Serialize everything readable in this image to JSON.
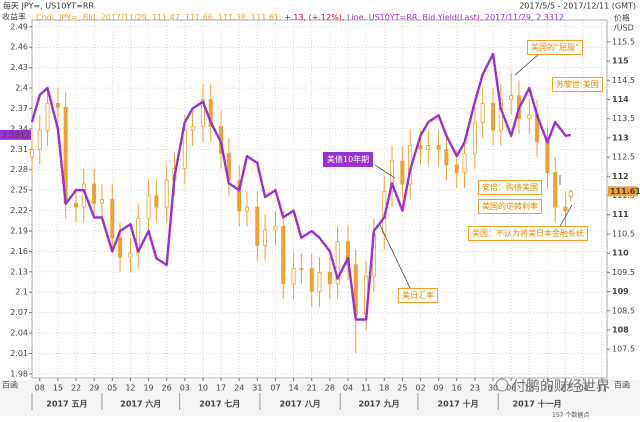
{
  "chart_data": {
    "type": "candlestick",
    "title": "每天 JPY=, US10YT=RR",
    "subtitle": "2017/5/5 - 2017/12/11 (GMT)",
    "legend_text": [
      "Cndl, JPY=, Bid, 2017/11/29, 111.47, 111.66, 111.38, 111.61, ",
      "+.13, (+.12%), ",
      "Line, US10YT=RR, Bid Yield(Last), 2017/11/29, 2.3312"
    ],
    "y_label": "收益率",
    "y2_label": [
      "价格",
      "/USD"
    ],
    "corner_labels": [
      "百函",
      "百函"
    ],
    "annotations": [
      "美国的“屈服”",
      "苏黎世:美国",
      "美债10年期",
      "安倍：购债美国",
      "美国的逆转利率",
      "美国：不认为将美日本金融系统",
      "美日汇率"
    ],
    "watermark": "付鹏的财经世界",
    "footnote": "157 个数据点",
    "grid": true,
    "x": [
      "2017-05-05",
      "2017-05-08",
      "2017-05-11",
      "2017-05-15",
      "2017-05-18",
      "2017-05-22",
      "2017-05-25",
      "2017-05-29",
      "2017-06-01",
      "2017-06-05",
      "2017-06-08",
      "2017-06-12",
      "2017-06-15",
      "2017-06-19",
      "2017-06-22",
      "2017-06-26",
      "2017-06-29",
      "2017-07-03",
      "2017-07-06",
      "2017-07-10",
      "2017-07-13",
      "2017-07-17",
      "2017-07-20",
      "2017-07-24",
      "2017-07-27",
      "2017-07-31",
      "2017-08-03",
      "2017-08-07",
      "2017-08-10",
      "2017-08-14",
      "2017-08-17",
      "2017-08-21",
      "2017-08-24",
      "2017-08-28",
      "2017-08-31",
      "2017-09-04",
      "2017-09-07",
      "2017-09-11",
      "2017-09-14",
      "2017-09-18",
      "2017-09-21",
      "2017-09-25",
      "2017-09-28",
      "2017-10-02",
      "2017-10-05",
      "2017-10-09",
      "2017-10-12",
      "2017-10-16",
      "2017-10-19",
      "2017-10-23",
      "2017-10-26",
      "2017-10-30",
      "2017-11-02",
      "2017-11-06",
      "2017-11-09",
      "2017-11-13",
      "2017-11-16",
      "2017-11-20",
      "2017-11-23",
      "2017-11-27",
      "2017-11-29"
    ],
    "xlim": [
      "2017-05-05",
      "2017-12-13"
    ],
    "xticks": [
      {
        "value": "2017-05-08",
        "label": "08"
      },
      {
        "value": "2017-05-15",
        "label": "15"
      },
      {
        "value": "2017-05-22",
        "label": "22"
      },
      {
        "value": "2017-05-29",
        "label": "29"
      },
      {
        "value": "2017-06-05",
        "label": "05"
      },
      {
        "value": "2017-06-12",
        "label": "12"
      },
      {
        "value": "2017-06-19",
        "label": "19"
      },
      {
        "value": "2017-06-26",
        "label": "26"
      },
      {
        "value": "2017-07-03",
        "label": "03"
      },
      {
        "value": "2017-07-10",
        "label": "10"
      },
      {
        "value": "2017-07-17",
        "label": "17"
      },
      {
        "value": "2017-07-24",
        "label": "24"
      },
      {
        "value": "2017-07-31",
        "label": "31"
      },
      {
        "value": "2017-08-07",
        "label": "07"
      },
      {
        "value": "2017-08-14",
        "label": "14"
      },
      {
        "value": "2017-08-21",
        "label": "21"
      },
      {
        "value": "2017-08-28",
        "label": "28"
      },
      {
        "value": "2017-09-04",
        "label": "04"
      },
      {
        "value": "2017-09-11",
        "label": "11"
      },
      {
        "value": "2017-09-18",
        "label": "18"
      },
      {
        "value": "2017-09-25",
        "label": "25"
      },
      {
        "value": "2017-10-02",
        "label": "02"
      },
      {
        "value": "2017-10-09",
        "label": "09"
      },
      {
        "value": "2017-10-16",
        "label": "16"
      },
      {
        "value": "2017-10-23",
        "label": "23"
      },
      {
        "value": "2017-10-30",
        "label": "30"
      },
      {
        "value": "2017-11-06",
        "label": "06"
      },
      {
        "value": "2017-11-13",
        "label": "13"
      },
      {
        "value": "2017-11-20",
        "label": "20"
      },
      {
        "value": "2017-11-27",
        "label": "27"
      },
      {
        "value": "2017-12-04",
        "label": "04"
      },
      {
        "value": "2017-12-11",
        "label": "11"
      }
    ],
    "x_groups": [
      {
        "label": "2017 五月",
        "start": "2017-05-05",
        "end": "2017-06-01"
      },
      {
        "label": "2017 六月",
        "start": "2017-06-01",
        "end": "2017-07-01"
      },
      {
        "label": "2017 七月",
        "start": "2017-07-01",
        "end": "2017-08-01"
      },
      {
        "label": "2017 八月",
        "start": "2017-08-01",
        "end": "2017-09-01"
      },
      {
        "label": "2017 九月",
        "start": "2017-09-01",
        "end": "2017-10-01"
      },
      {
        "label": "2017 十月",
        "start": "2017-10-01",
        "end": "2017-11-01"
      },
      {
        "label": "2017 十一月",
        "start": "2017-11-01",
        "end": "2017-12-01"
      }
    ],
    "ylim": [
      1.974,
      2.5
    ],
    "yticks": [
      2.49,
      2.46,
      2.43,
      2.4,
      2.37,
      2.34,
      2.31,
      2.28,
      2.25,
      2.22,
      2.19,
      2.16,
      2.13,
      2.1,
      2.07,
      2.04,
      2.01,
      1.98
    ],
    "y2lim": [
      106.75,
      116.07
    ],
    "y2ticks": [
      115.5,
      115,
      114.5,
      114,
      113.5,
      113,
      112.5,
      112,
      111.5,
      111,
      110.5,
      110,
      109.5,
      109,
      108.5,
      108,
      107.5
    ],
    "series": [
      {
        "type": "candlestick",
        "axis": "y2",
        "color": "#f0a030",
        "open": [
          112.5,
          112.7,
          113.2,
          113.9,
          113.8,
          111.3,
          111.2,
          111.8,
          111.3,
          111.4,
          110.4,
          109.9,
          110.0,
          110.9,
          111.5,
          111.2,
          111.9,
          112.2,
          113.2,
          113.3,
          114.0,
          113.3,
          112.6,
          111.9,
          111.1,
          111.2,
          110.2,
          110.6,
          110.7,
          109.2,
          109.6,
          109.6,
          109.0,
          109.5,
          109.2,
          110.3,
          109.7,
          108.4,
          109.4,
          110.5,
          111.6,
          112.4,
          111.8,
          112.8,
          112.7,
          112.8,
          112.7,
          112.3,
          112.1,
          112.6,
          113.4,
          113.9,
          113.2,
          114.0,
          114.1,
          113.5,
          113.6,
          112.9,
          112.1,
          111.2,
          111.47
        ],
        "high": [
          113.1,
          113.6,
          114.3,
          114.3,
          114.2,
          111.7,
          112.2,
          112.2,
          111.8,
          111.8,
          110.8,
          110.4,
          111.3,
          111.9,
          111.9,
          112.3,
          112.6,
          113.6,
          113.7,
          114.4,
          114.4,
          113.7,
          113.0,
          112.3,
          111.6,
          111.6,
          111.0,
          111.1,
          111.1,
          110.0,
          110.0,
          110.0,
          109.9,
          109.9,
          110.7,
          110.7,
          110.1,
          109.8,
          110.9,
          112.0,
          112.8,
          112.8,
          113.2,
          113.2,
          113.2,
          113.2,
          113.1,
          112.7,
          113.0,
          113.8,
          114.3,
          114.3,
          114.4,
          114.7,
          114.5,
          114.0,
          114.0,
          113.3,
          112.5,
          111.6,
          111.66
        ],
        "low": [
          112.1,
          112.3,
          112.8,
          113.4,
          110.9,
          110.8,
          110.8,
          110.9,
          110.9,
          110.0,
          109.5,
          109.5,
          109.6,
          110.5,
          110.8,
          110.8,
          111.5,
          111.8,
          112.8,
          112.9,
          112.9,
          112.2,
          111.5,
          110.7,
          110.7,
          109.8,
          109.8,
          110.2,
          108.8,
          108.8,
          109.2,
          108.6,
          108.6,
          108.8,
          108.8,
          109.3,
          107.4,
          108.0,
          109.0,
          110.1,
          111.2,
          111.4,
          111.4,
          112.3,
          112.3,
          112.3,
          111.9,
          111.7,
          111.7,
          112.2,
          113.0,
          112.8,
          112.8,
          113.6,
          113.1,
          113.1,
          112.5,
          111.7,
          110.8,
          110.7,
          111.38
        ],
        "close": [
          112.7,
          113.2,
          113.9,
          113.8,
          111.3,
          111.2,
          111.8,
          111.3,
          111.4,
          110.4,
          109.9,
          110.0,
          110.9,
          111.5,
          111.2,
          111.9,
          112.2,
          113.2,
          113.3,
          114.0,
          113.3,
          112.6,
          111.9,
          111.1,
          111.2,
          110.2,
          110.6,
          110.7,
          109.2,
          109.6,
          109.6,
          109.0,
          109.5,
          109.2,
          110.3,
          109.7,
          108.4,
          109.4,
          110.5,
          111.6,
          112.4,
          111.8,
          112.8,
          112.7,
          112.8,
          112.7,
          112.3,
          112.1,
          112.6,
          113.4,
          113.9,
          113.2,
          114.0,
          114.1,
          113.5,
          113.6,
          112.9,
          112.1,
          111.2,
          111.1,
          111.61
        ]
      },
      {
        "type": "line",
        "color": "#9b30d0",
        "values": [
          2.35,
          2.39,
          2.4,
          2.34,
          2.23,
          2.25,
          2.25,
          2.21,
          2.21,
          2.16,
          2.19,
          2.2,
          2.16,
          2.19,
          2.15,
          2.14,
          2.27,
          2.35,
          2.37,
          2.38,
          2.35,
          2.32,
          2.26,
          2.25,
          2.3,
          2.29,
          2.24,
          2.25,
          2.21,
          2.22,
          2.18,
          2.19,
          2.18,
          2.16,
          2.12,
          2.15,
          2.06,
          2.06,
          2.19,
          2.21,
          2.26,
          2.22,
          2.28,
          2.33,
          2.35,
          2.36,
          2.33,
          2.3,
          2.32,
          2.38,
          2.42,
          2.45,
          2.37,
          2.33,
          2.37,
          2.4,
          2.36,
          2.32,
          2.35,
          2.33,
          2.3312
        ]
      }
    ]
  }
}
